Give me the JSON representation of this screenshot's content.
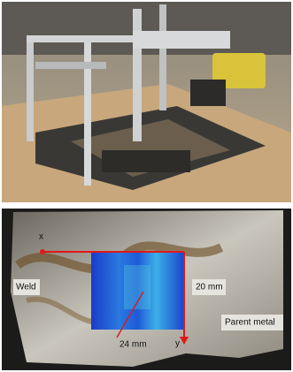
{
  "labels": {
    "x_axis": "x",
    "y_axis": "y",
    "weld": "Weld",
    "width": "20 mm",
    "length": "24 mm",
    "parent": "Parent metal"
  }
}
